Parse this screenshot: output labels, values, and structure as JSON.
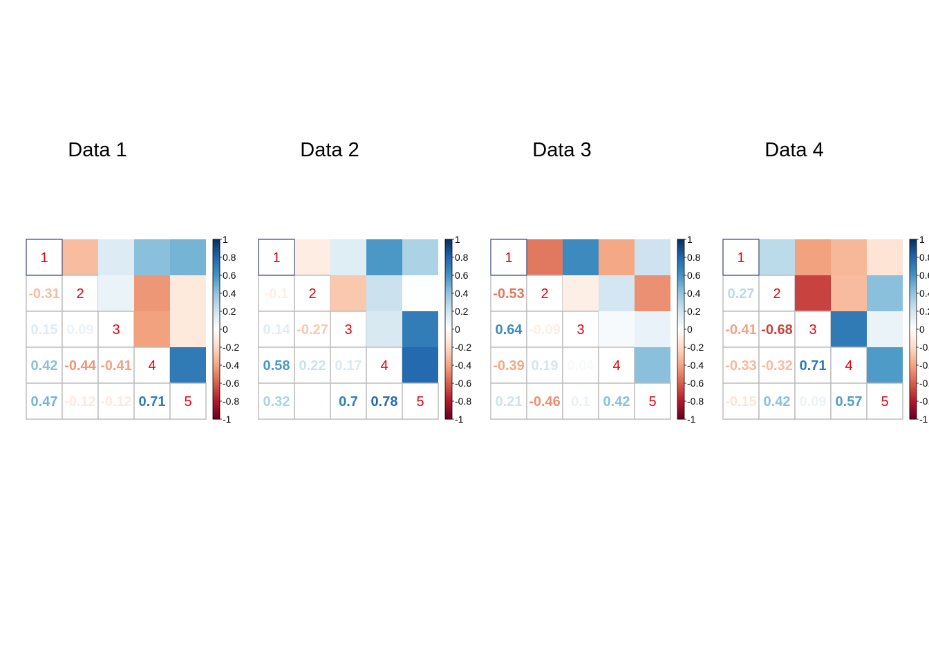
{
  "figure": {
    "variables": [
      "1",
      "2",
      "3",
      "4",
      "5"
    ],
    "colorbar_ticks": [
      "1",
      "0.8",
      "0.6",
      "0.4",
      "0.2",
      "0",
      "-0.2",
      "-0.4",
      "-0.6",
      "-0.8",
      "-1"
    ],
    "colors": {
      "diagonal_label": "#e8000b",
      "grid": "#bdbdbd",
      "palette": [
        "#67001f",
        "#b2182b",
        "#d6604d",
        "#f4a582",
        "#fddbc7",
        "#ffffff",
        "#d1e5f0",
        "#92c5de",
        "#4393c3",
        "#2166ac",
        "#053061"
      ]
    }
  },
  "chart_data": [
    {
      "type": "heatmap",
      "title": "Data 1",
      "layout": "lower triangle numbers, upper triangle colored squares, diagonal labels",
      "value_range": [
        -1,
        1
      ],
      "variables": [
        "1",
        "2",
        "3",
        "4",
        "5"
      ],
      "matrix": [
        [
          1,
          -0.31,
          0.15,
          0.42,
          0.47
        ],
        [
          -0.31,
          1,
          0.09,
          -0.44,
          -0.12
        ],
        [
          0.15,
          0.09,
          1,
          -0.41,
          -0.12
        ],
        [
          0.42,
          -0.44,
          -0.41,
          1,
          0.71
        ],
        [
          0.47,
          -0.12,
          -0.12,
          0.71,
          1
        ]
      ]
    },
    {
      "type": "heatmap",
      "title": "Data 2",
      "layout": "lower triangle numbers, upper triangle colored squares, diagonal labels",
      "value_range": [
        -1,
        1
      ],
      "variables": [
        "1",
        "2",
        "3",
        "4",
        "5"
      ],
      "matrix": [
        [
          1,
          -0.1,
          0.14,
          0.58,
          0.32
        ],
        [
          -0.1,
          1,
          -0.27,
          0.22,
          0.01
        ],
        [
          0.14,
          -0.27,
          1,
          0.17,
          0.7
        ],
        [
          0.58,
          0.22,
          0.17,
          1,
          0.78
        ],
        [
          0.32,
          0.01,
          0.7,
          0.78,
          1
        ]
      ]
    },
    {
      "type": "heatmap",
      "title": "Data 3",
      "layout": "lower triangle numbers, upper triangle colored squares, diagonal labels",
      "value_range": [
        -1,
        1
      ],
      "variables": [
        "1",
        "2",
        "3",
        "4",
        "5"
      ],
      "matrix": [
        [
          1,
          -0.53,
          0.64,
          -0.39,
          0.21
        ],
        [
          -0.53,
          1,
          -0.09,
          0.19,
          -0.46
        ],
        [
          0.64,
          -0.09,
          1,
          0.04,
          0.1
        ],
        [
          -0.39,
          0.19,
          0.04,
          1,
          0.42
        ],
        [
          0.21,
          -0.46,
          0.1,
          0.42,
          1
        ]
      ]
    },
    {
      "type": "heatmap",
      "title": "Data 4",
      "layout": "lower triangle numbers, upper triangle colored squares, diagonal labels",
      "value_range": [
        -1,
        1
      ],
      "variables": [
        "1",
        "2",
        "3",
        "4",
        "5"
      ],
      "matrix": [
        [
          1,
          0.27,
          -0.41,
          -0.33,
          -0.15
        ],
        [
          0.27,
          1,
          -0.68,
          -0.32,
          0.42
        ],
        [
          -0.41,
          -0.68,
          1,
          0.71,
          0.09
        ],
        [
          -0.33,
          -0.32,
          0.71,
          1,
          0.57
        ],
        [
          -0.15,
          0.42,
          0.09,
          0.57,
          1
        ]
      ]
    }
  ]
}
